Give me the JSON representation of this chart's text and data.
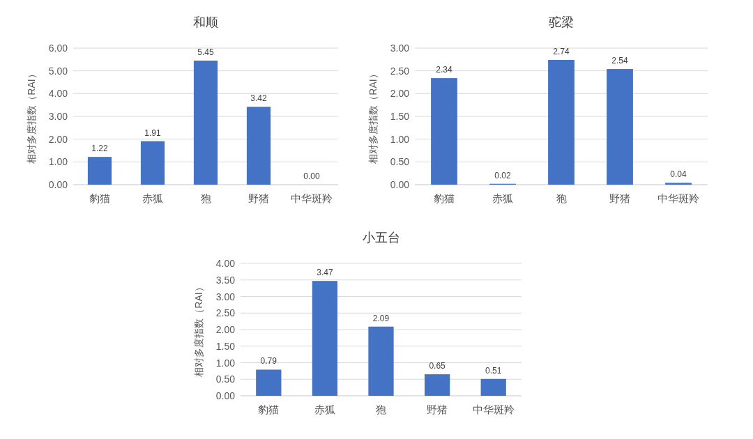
{
  "chart_data": [
    {
      "type": "bar",
      "title": "和顺",
      "ylabel": "相对多度指数（RAI）",
      "categories": [
        "豹猫",
        "赤狐",
        "狍",
        "野猪",
        "中华斑羚"
      ],
      "values": [
        1.22,
        1.91,
        5.45,
        3.42,
        0
      ],
      "value_labels": [
        "1.22",
        "1.91",
        "5.45",
        "3.42",
        "0.00"
      ],
      "color": "#4472c4",
      "ylim": [
        0,
        6
      ],
      "yticks": [
        {
          "value": 0,
          "label": "0.00"
        },
        {
          "value": 1,
          "label": "1.00"
        },
        {
          "value": 2,
          "label": "2.00"
        },
        {
          "value": 3,
          "label": "3.00"
        },
        {
          "value": 4,
          "label": "4.00"
        },
        {
          "value": 5,
          "label": "5.00"
        },
        {
          "value": 6,
          "label": "6.00"
        }
      ],
      "grid": "y"
    },
    {
      "type": "bar",
      "title": "驼梁",
      "ylabel": "相对多度指数（RAI）",
      "categories": [
        "豹猫",
        "赤狐",
        "狍",
        "野猪",
        "中华斑羚"
      ],
      "values": [
        2.34,
        0.02,
        2.74,
        2.54,
        0.04
      ],
      "value_labels": [
        "2.34",
        "0.02",
        "2.74",
        "2.54",
        "0.04"
      ],
      "color": "#4472c4",
      "ylim": [
        0,
        3
      ],
      "yticks": [
        {
          "value": 0,
          "label": "0.00"
        },
        {
          "value": 0.5,
          "label": "0.50"
        },
        {
          "value": 1,
          "label": "1.00"
        },
        {
          "value": 1.5,
          "label": "1.50"
        },
        {
          "value": 2,
          "label": "2.00"
        },
        {
          "value": 2.5,
          "label": "2.50"
        },
        {
          "value": 3,
          "label": "3.00"
        }
      ],
      "grid": "y"
    },
    {
      "type": "bar",
      "title": "小五台",
      "ylabel": "相对多度指数（RAI）",
      "categories": [
        "豹猫",
        "赤狐",
        "狍",
        "野猪",
        "中华斑羚"
      ],
      "values": [
        0.79,
        3.47,
        2.09,
        0.65,
        0.51
      ],
      "value_labels": [
        "0.79",
        "3.47",
        "2.09",
        "0.65",
        "0.51"
      ],
      "color": "#4472c4",
      "ylim": [
        0,
        4
      ],
      "yticks": [
        {
          "value": 0,
          "label": "0.00"
        },
        {
          "value": 0.5,
          "label": "0.50"
        },
        {
          "value": 1,
          "label": "1.00"
        },
        {
          "value": 1.5,
          "label": "1.50"
        },
        {
          "value": 2,
          "label": "2.00"
        },
        {
          "value": 2.5,
          "label": "2.50"
        },
        {
          "value": 3,
          "label": "3.00"
        },
        {
          "value": 3.5,
          "label": "3.50"
        },
        {
          "value": 4,
          "label": "4.00"
        }
      ],
      "grid": "y"
    }
  ]
}
